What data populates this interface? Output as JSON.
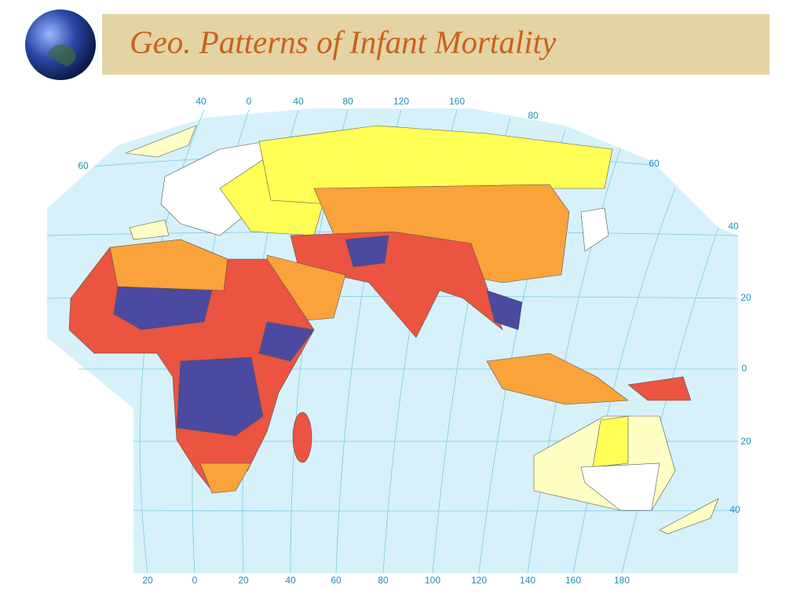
{
  "header": {
    "title": "Geo. Patterns of Infant Mortality"
  },
  "map": {
    "top_labels": [
      "40",
      "0",
      "40",
      "80",
      "120",
      "160",
      "80"
    ],
    "left_labels": [
      "60"
    ],
    "right_labels": [
      "60",
      "40",
      "20",
      "0",
      "20",
      "40"
    ],
    "bottom_labels": [
      "20",
      "0",
      "20",
      "40",
      "60",
      "80",
      "100",
      "120",
      "140",
      "160",
      "180"
    ]
  }
}
